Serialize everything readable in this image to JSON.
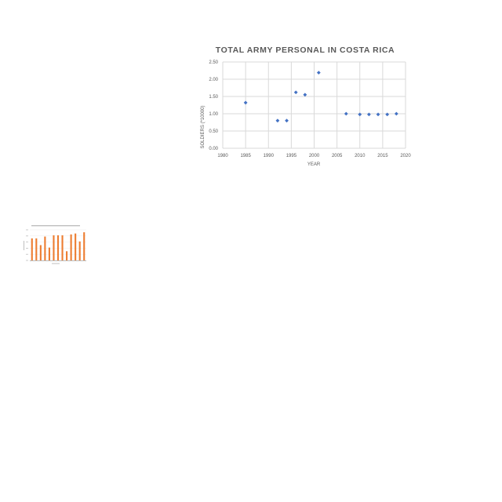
{
  "chart_data": [
    {
      "type": "scatter",
      "title": "TOTAL ARMY PERSONAL IN COSTA RICA",
      "xlabel": "YEAR",
      "ylabel": "SOLDIERS (*10000)",
      "xlim": [
        1980,
        2020
      ],
      "ylim": [
        0,
        2.5
      ],
      "xticks": [
        "1980",
        "1985",
        "1990",
        "1995",
        "2000",
        "2005",
        "2010",
        "2015",
        "2020"
      ],
      "yticks": [
        "0.00",
        "0.50",
        "1.00",
        "1.50",
        "2.00",
        "2.50"
      ],
      "grid": true,
      "points": [
        {
          "x": 1985,
          "y": 1.32
        },
        {
          "x": 1992,
          "y": 0.8
        },
        {
          "x": 1994,
          "y": 0.8
        },
        {
          "x": 1996,
          "y": 1.62
        },
        {
          "x": 1998,
          "y": 1.55
        },
        {
          "x": 2001,
          "y": 2.19
        },
        {
          "x": 2007,
          "y": 1.0
        },
        {
          "x": 2010,
          "y": 0.98
        },
        {
          "x": 2012,
          "y": 0.98
        },
        {
          "x": 2014,
          "y": 0.98
        },
        {
          "x": 2016,
          "y": 0.98
        },
        {
          "x": 2018,
          "y": 1.0
        }
      ],
      "marker_color": "#4472c4"
    },
    {
      "type": "bar",
      "title": "",
      "xlabel": "",
      "ylabel": "",
      "ylim": [
        0,
        10
      ],
      "values": [
        7.2,
        7.2,
        5.0,
        7.8,
        4.2,
        8.2,
        8.2,
        8.2,
        3.0,
        8.5,
        8.8,
        6.2,
        9.2
      ],
      "bar_color": "#ed7d31",
      "grid": true
    }
  ]
}
